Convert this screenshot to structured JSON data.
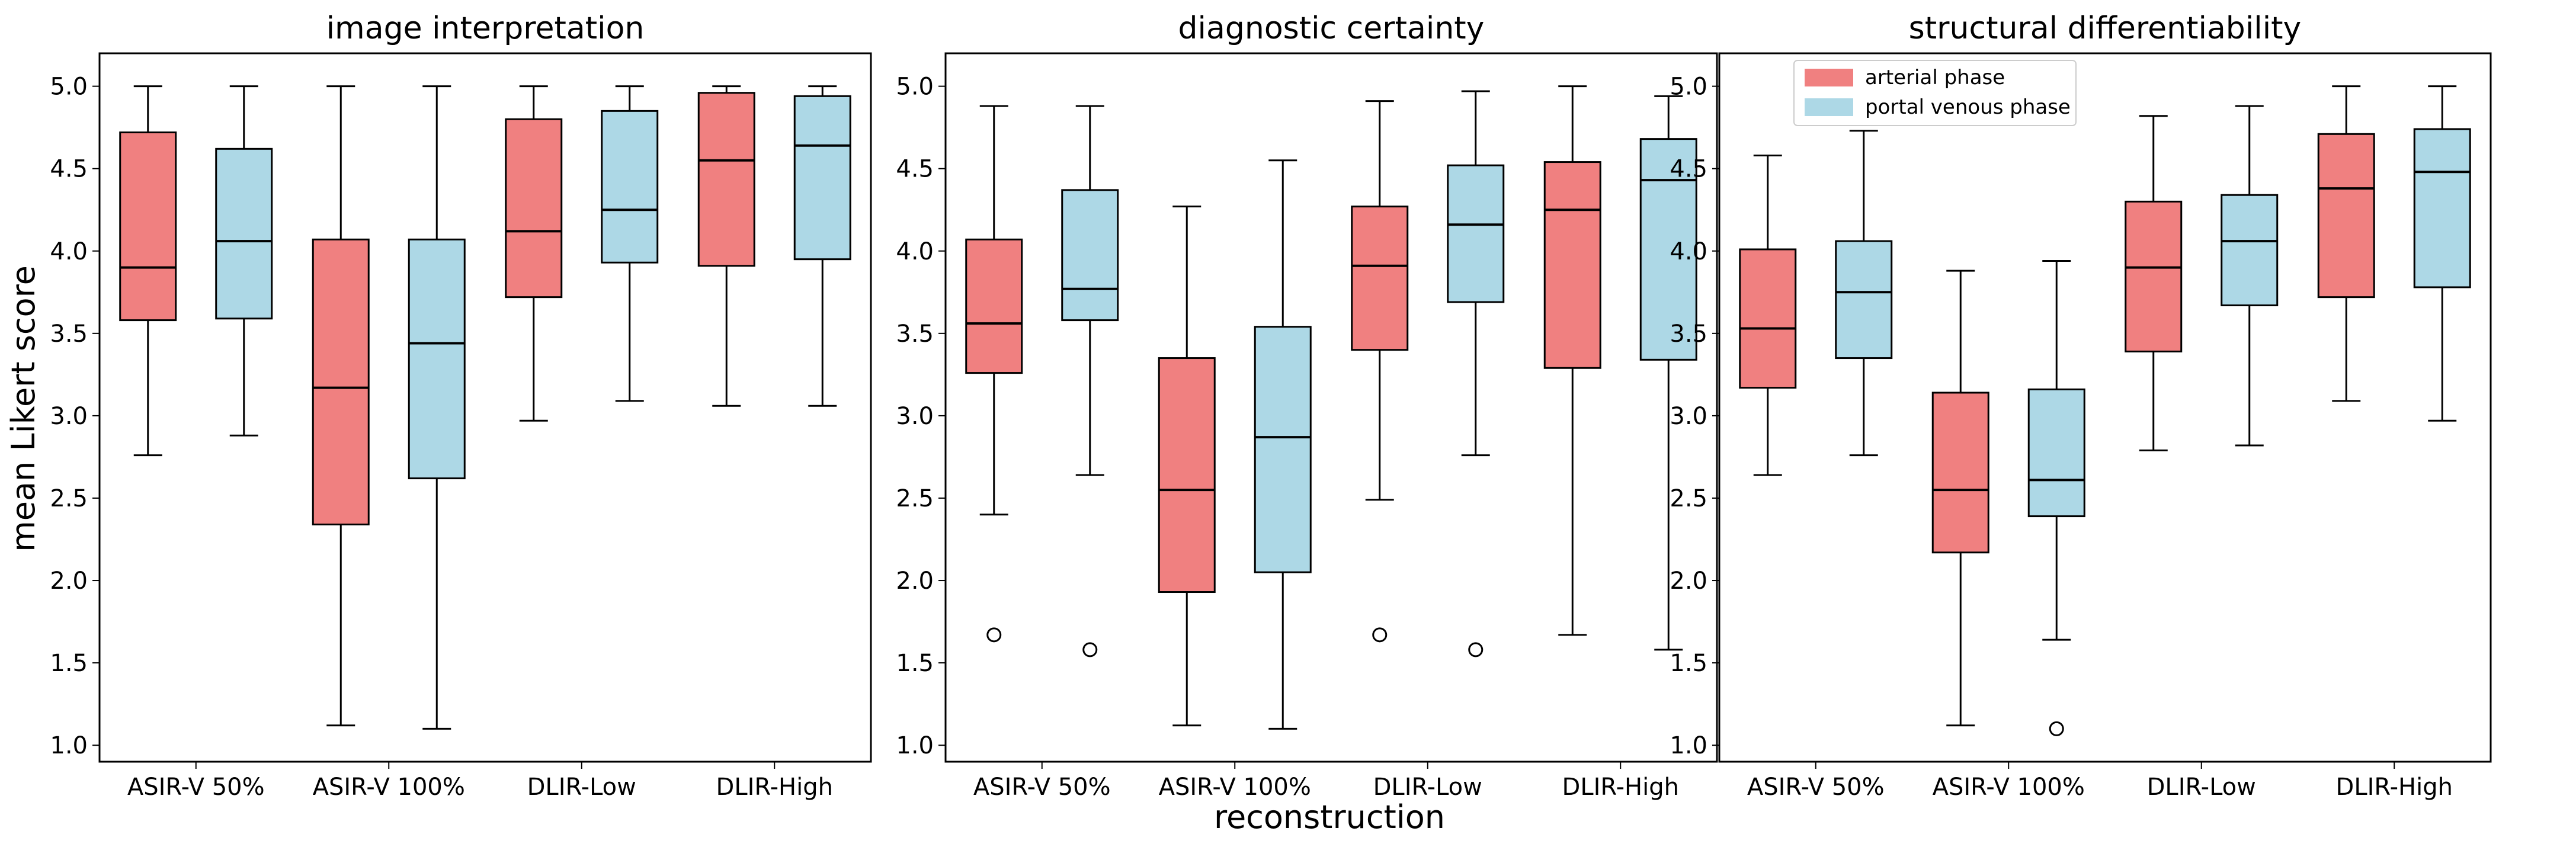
{
  "figure": {
    "ylabel": "mean Likert score",
    "xlabel": "reconstruction"
  },
  "legend": {
    "items": [
      {
        "label": "arterial phase",
        "color": "#F08080"
      },
      {
        "label": "portal venous phase",
        "color": "#ADD8E6"
      }
    ]
  },
  "colors": {
    "arterial": "#F08080",
    "portal": "#ADD8E6",
    "stroke": "#000000"
  },
  "chart_data": [
    {
      "type": "box",
      "title": "image interpretation",
      "categories": [
        "ASIR-V 50%",
        "ASIR-V 100%",
        "DLIR-Low",
        "DLIR-High"
      ],
      "ylim": [
        0.9,
        5.2
      ],
      "yticks": [
        "1.0",
        "1.5",
        "2.0",
        "2.5",
        "3.0",
        "3.5",
        "4.0",
        "4.5",
        "5.0"
      ],
      "series": [
        {
          "name": "arterial phase",
          "boxes": [
            {
              "whislo": 2.76,
              "q1": 3.58,
              "med": 3.9,
              "q3": 4.72,
              "whishi": 5.0,
              "fliers": []
            },
            {
              "whislo": 1.12,
              "q1": 2.34,
              "med": 3.17,
              "q3": 4.07,
              "whishi": 5.0,
              "fliers": []
            },
            {
              "whislo": 2.97,
              "q1": 3.72,
              "med": 4.12,
              "q3": 4.8,
              "whishi": 5.0,
              "fliers": []
            },
            {
              "whislo": 3.06,
              "q1": 3.91,
              "med": 4.55,
              "q3": 4.96,
              "whishi": 5.0,
              "fliers": []
            }
          ]
        },
        {
          "name": "portal venous phase",
          "boxes": [
            {
              "whislo": 2.88,
              "q1": 3.59,
              "med": 4.06,
              "q3": 4.62,
              "whishi": 5.0,
              "fliers": []
            },
            {
              "whislo": 1.1,
              "q1": 2.62,
              "med": 3.44,
              "q3": 4.07,
              "whishi": 5.0,
              "fliers": []
            },
            {
              "whislo": 3.09,
              "q1": 3.93,
              "med": 4.25,
              "q3": 4.85,
              "whishi": 5.0,
              "fliers": []
            },
            {
              "whislo": 3.06,
              "q1": 3.95,
              "med": 4.64,
              "q3": 4.94,
              "whishi": 5.0,
              "fliers": []
            }
          ]
        }
      ]
    },
    {
      "type": "box",
      "title": "diagnostic certainty",
      "categories": [
        "ASIR-V 50%",
        "ASIR-V 100%",
        "DLIR-Low",
        "DLIR-High"
      ],
      "ylim": [
        0.9,
        5.2
      ],
      "yticks": [
        "1.0",
        "1.5",
        "2.0",
        "2.5",
        "3.0",
        "3.5",
        "4.0",
        "4.5",
        "5.0"
      ],
      "series": [
        {
          "name": "arterial phase",
          "boxes": [
            {
              "whislo": 2.4,
              "q1": 3.26,
              "med": 3.56,
              "q3": 4.07,
              "whishi": 4.88,
              "fliers": [
                1.67
              ]
            },
            {
              "whislo": 1.12,
              "q1": 1.93,
              "med": 2.55,
              "q3": 3.35,
              "whishi": 4.27,
              "fliers": []
            },
            {
              "whislo": 2.49,
              "q1": 3.4,
              "med": 3.91,
              "q3": 4.27,
              "whishi": 4.91,
              "fliers": [
                1.67
              ]
            },
            {
              "whislo": 1.67,
              "q1": 3.29,
              "med": 4.25,
              "q3": 4.54,
              "whishi": 5.0,
              "fliers": []
            }
          ]
        },
        {
          "name": "portal venous phase",
          "boxes": [
            {
              "whislo": 2.64,
              "q1": 3.58,
              "med": 3.77,
              "q3": 4.37,
              "whishi": 4.88,
              "fliers": [
                1.58
              ]
            },
            {
              "whislo": 1.1,
              "q1": 2.05,
              "med": 2.87,
              "q3": 3.54,
              "whishi": 4.55,
              "fliers": []
            },
            {
              "whislo": 2.76,
              "q1": 3.69,
              "med": 4.16,
              "q3": 4.52,
              "whishi": 4.97,
              "fliers": [
                1.58
              ]
            },
            {
              "whislo": 1.58,
              "q1": 3.34,
              "med": 4.43,
              "q3": 4.68,
              "whishi": 4.94,
              "fliers": []
            }
          ]
        }
      ]
    },
    {
      "type": "box",
      "title": "structural differentiability",
      "categories": [
        "ASIR-V 50%",
        "ASIR-V 100%",
        "DLIR-Low",
        "DLIR-High"
      ],
      "ylim": [
        0.9,
        5.2
      ],
      "yticks": [
        "1.0",
        "1.5",
        "2.0",
        "2.5",
        "3.0",
        "3.5",
        "4.0",
        "4.5",
        "5.0"
      ],
      "series": [
        {
          "name": "arterial phase",
          "boxes": [
            {
              "whislo": 2.64,
              "q1": 3.17,
              "med": 3.53,
              "q3": 4.01,
              "whishi": 4.58,
              "fliers": []
            },
            {
              "whislo": 1.12,
              "q1": 2.17,
              "med": 2.55,
              "q3": 3.14,
              "whishi": 3.88,
              "fliers": []
            },
            {
              "whislo": 2.79,
              "q1": 3.39,
              "med": 3.9,
              "q3": 4.3,
              "whishi": 4.82,
              "fliers": []
            },
            {
              "whislo": 3.09,
              "q1": 3.72,
              "med": 4.38,
              "q3": 4.71,
              "whishi": 5.0,
              "fliers": []
            }
          ]
        },
        {
          "name": "portal venous phase",
          "boxes": [
            {
              "whislo": 2.76,
              "q1": 3.35,
              "med": 3.75,
              "q3": 4.06,
              "whishi": 4.73,
              "fliers": []
            },
            {
              "whislo": 1.64,
              "q1": 2.39,
              "med": 2.61,
              "q3": 3.16,
              "whishi": 3.94,
              "fliers": [
                1.1
              ]
            },
            {
              "whislo": 2.82,
              "q1": 3.67,
              "med": 4.06,
              "q3": 4.34,
              "whishi": 4.88,
              "fliers": []
            },
            {
              "whislo": 2.97,
              "q1": 3.78,
              "med": 4.48,
              "q3": 4.74,
              "whishi": 5.0,
              "fliers": []
            }
          ]
        }
      ]
    }
  ]
}
